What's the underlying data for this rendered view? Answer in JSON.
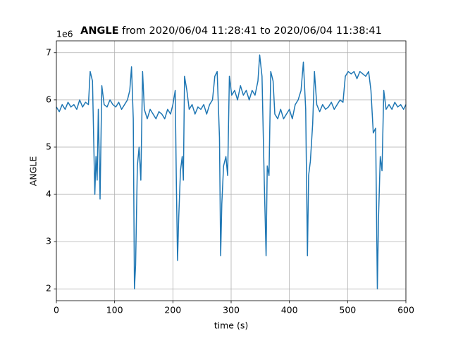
{
  "chart_data": {
    "type": "line",
    "title": "ANGLE",
    "title_suffix": "from 2020/06/04 11:28:41 to 2020/06/04 11:38:41",
    "y_offset_label": "1e6",
    "x_label": "time (s)",
    "y_label": "ANGLE",
    "color": "#1f77b4",
    "grid": true,
    "xlim": [
      0,
      600
    ],
    "xticks": [
      0,
      100,
      200,
      300,
      400,
      500,
      600
    ],
    "ylim": [
      1.75,
      7.25
    ],
    "yticks": [
      2,
      3,
      4,
      5,
      6,
      7
    ],
    "x": [
      0,
      5,
      10,
      15,
      20,
      25,
      30,
      35,
      40,
      45,
      50,
      55,
      58,
      62,
      64,
      66,
      68,
      70,
      72,
      75,
      78,
      82,
      87,
      92,
      97,
      102,
      107,
      112,
      117,
      122,
      126,
      129,
      132,
      134,
      136,
      139,
      142,
      145,
      148,
      151,
      156,
      161,
      166,
      171,
      176,
      181,
      186,
      191,
      196,
      200,
      204,
      206,
      208,
      210,
      213,
      216,
      218,
      220,
      224,
      228,
      233,
      238,
      243,
      248,
      253,
      258,
      263,
      268,
      272,
      276,
      280,
      282,
      284,
      287,
      291,
      294,
      297,
      301,
      306,
      311,
      316,
      321,
      326,
      331,
      336,
      341,
      346,
      349,
      353,
      357,
      360,
      362,
      365,
      368,
      372,
      375,
      380,
      385,
      390,
      395,
      400,
      405,
      410,
      415,
      420,
      424,
      428,
      431,
      433,
      436,
      440,
      443,
      447,
      452,
      457,
      462,
      467,
      472,
      477,
      482,
      487,
      492,
      496,
      501,
      506,
      511,
      516,
      521,
      526,
      531,
      536,
      540,
      544,
      548,
      551,
      553,
      556,
      559,
      562,
      566,
      571,
      576,
      581,
      586,
      591,
      596,
      600
    ],
    "values": [
      5.85,
      5.75,
      5.9,
      5.8,
      5.95,
      5.85,
      5.9,
      5.8,
      6.0,
      5.85,
      5.95,
      5.9,
      6.6,
      6.4,
      5.2,
      4.0,
      4.8,
      4.3,
      5.8,
      3.9,
      6.3,
      5.9,
      5.85,
      6.0,
      5.9,
      5.85,
      5.95,
      5.8,
      5.9,
      6.0,
      6.2,
      6.7,
      5.6,
      2.0,
      2.5,
      4.6,
      5.0,
      4.3,
      6.6,
      5.8,
      5.6,
      5.8,
      5.7,
      5.6,
      5.75,
      5.7,
      5.6,
      5.8,
      5.7,
      5.9,
      6.2,
      4.2,
      2.6,
      3.5,
      4.5,
      4.8,
      4.3,
      6.5,
      6.2,
      5.8,
      5.9,
      5.7,
      5.85,
      5.8,
      5.9,
      5.7,
      5.9,
      6.0,
      6.5,
      6.6,
      5.2,
      2.7,
      3.8,
      4.6,
      4.8,
      4.4,
      6.5,
      6.1,
      6.2,
      6.0,
      6.3,
      6.1,
      6.2,
      6.0,
      6.2,
      6.1,
      6.4,
      6.95,
      6.5,
      4.2,
      2.7,
      4.6,
      4.4,
      6.6,
      6.4,
      5.7,
      5.6,
      5.8,
      5.6,
      5.7,
      5.8,
      5.6,
      5.9,
      6.0,
      6.2,
      6.8,
      5.8,
      2.7,
      4.4,
      4.7,
      5.5,
      6.6,
      5.9,
      5.75,
      5.9,
      5.8,
      5.85,
      5.95,
      5.8,
      5.9,
      6.0,
      5.95,
      6.5,
      6.6,
      6.55,
      6.6,
      6.45,
      6.6,
      6.55,
      6.5,
      6.6,
      6.2,
      5.3,
      5.4,
      2.0,
      3.5,
      4.8,
      4.5,
      6.2,
      5.8,
      5.9,
      5.8,
      5.95,
      5.85,
      5.9,
      5.8,
      5.9
    ]
  }
}
